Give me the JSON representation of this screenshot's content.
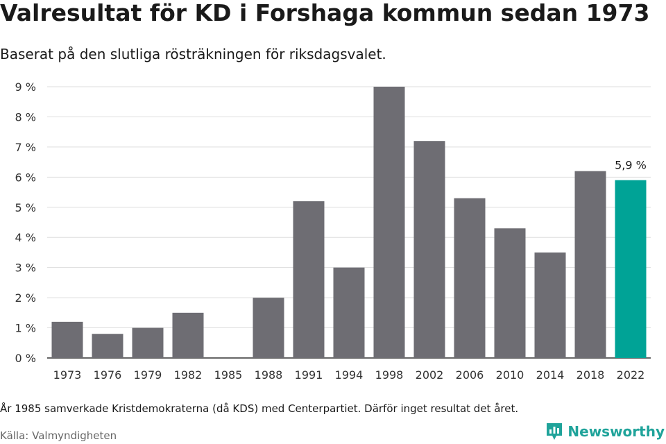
{
  "header": {
    "title": "Valresultat för KD i Forshaga kommun sedan 1973",
    "subtitle": "Baserat på den slutliga rösträkningen för riksdagsvalet."
  },
  "footer": {
    "note": "År 1985 samverkade Kristdemokraterna (då KDS) med Centerpartiet. Därför inget resultat det året.",
    "source": "Källa: Valmyndigheten",
    "brand": "Newsworthy"
  },
  "chart_data": {
    "type": "bar",
    "categories": [
      "1973",
      "1976",
      "1979",
      "1982",
      "1985",
      "1988",
      "1991",
      "1994",
      "1998",
      "2002",
      "2006",
      "2010",
      "2014",
      "2018",
      "2022"
    ],
    "values": [
      1.2,
      0.8,
      1.0,
      1.5,
      null,
      2.0,
      5.2,
      3.0,
      9.0,
      7.2,
      5.3,
      4.3,
      3.5,
      6.2,
      5.9
    ],
    "ylim": [
      0,
      9
    ],
    "yticks": [
      "0 %",
      "1 %",
      "2 %",
      "3 %",
      "4 %",
      "5 %",
      "6 %",
      "7 %",
      "8 %",
      "9 %"
    ],
    "grid": true,
    "highlight_index": 14,
    "highlight_label": "5,9 %",
    "colors": {
      "bar": "#6e6d73",
      "highlight": "#00a396",
      "grid": "#dddddd",
      "axis": "#333333"
    }
  }
}
